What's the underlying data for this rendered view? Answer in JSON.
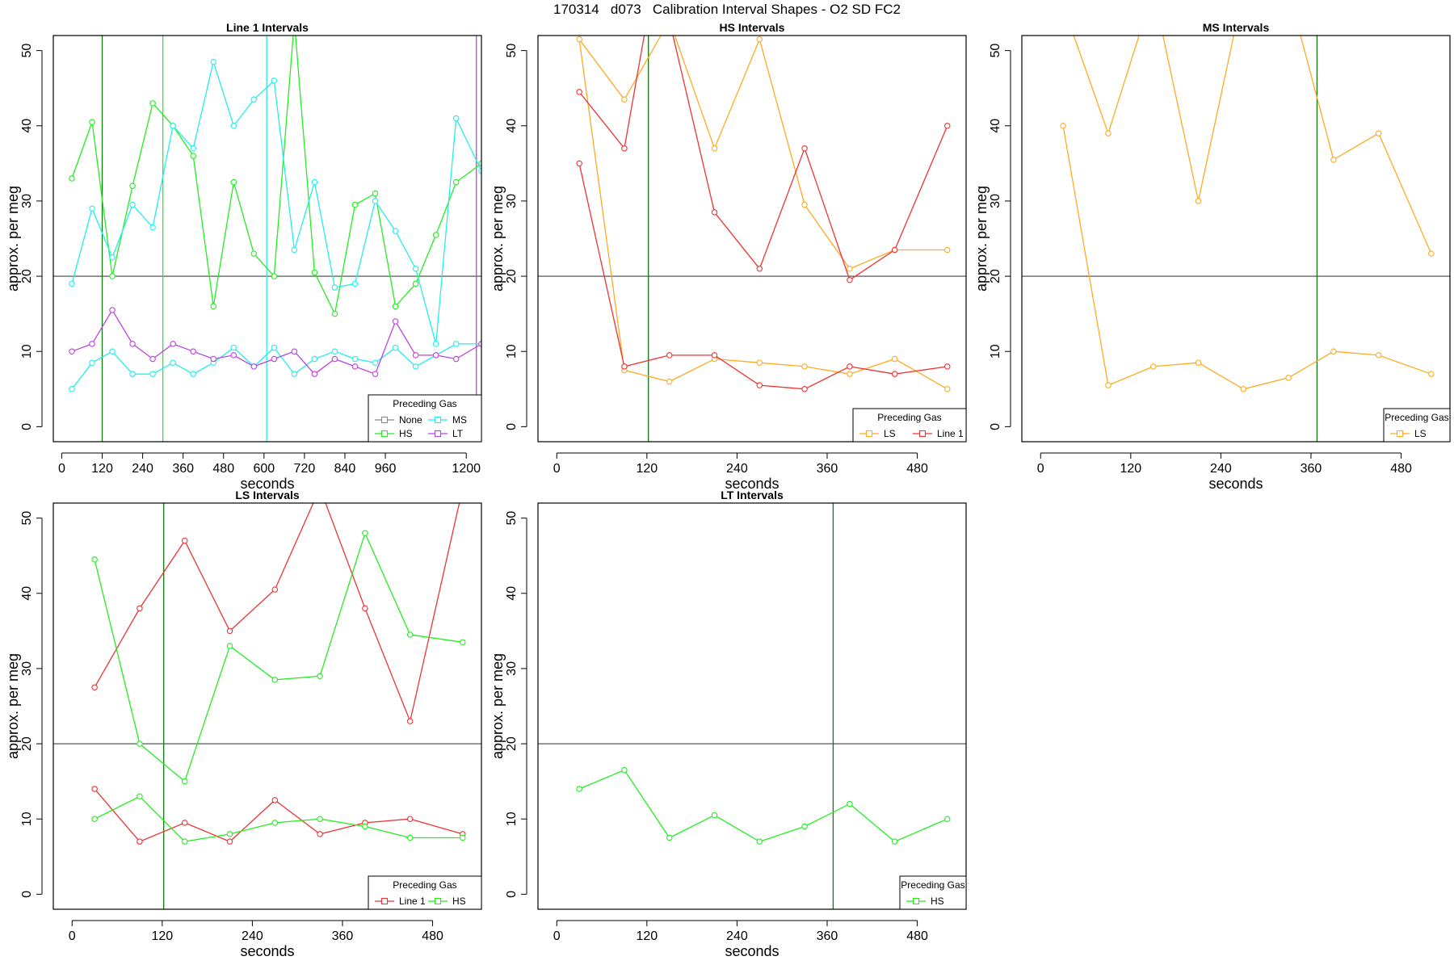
{
  "figure": {
    "title": "170314   d073   Calibration Interval Shapes - O2 SD FC2"
  },
  "colors": {
    "None": "#888888",
    "HS": "#22ee22",
    "MS": "#22eeee",
    "LT": "#bb44dd",
    "LS": "#ffaa22",
    "Line 1": "#ee3333",
    "reference": "#444444",
    "vline_dark": "#117711"
  },
  "chart_data": [
    {
      "type": "line",
      "title": "Line 1 Intervals",
      "xlabel": "seconds",
      "ylabel": "approx. per meg",
      "xlim": [
        -25,
        1245
      ],
      "ylim": [
        -2,
        52
      ],
      "x_ticks": [
        0,
        120,
        240,
        360,
        480,
        600,
        720,
        840,
        960,
        1200
      ],
      "y_ticks": [
        0,
        10,
        20,
        30,
        40,
        50
      ],
      "hline": 20,
      "legend": {
        "title": "Preceding Gas",
        "position": "bottom-right",
        "columns": 2,
        "entries": [
          "None",
          "MS",
          "HS",
          "LT"
        ]
      },
      "vlines": [
        {
          "x": 120,
          "color_key": "vline_dark"
        },
        {
          "x": 300,
          "color_key": "HS"
        },
        {
          "x": 608,
          "color_key": "MS"
        },
        {
          "x": 1230,
          "color_key": "LT"
        }
      ],
      "series": [
        {
          "name": "HS",
          "x": [
            30,
            90,
            150,
            210,
            270,
            330,
            390,
            450,
            510,
            570,
            630,
            690,
            750,
            810,
            870,
            930,
            990,
            1050,
            1110,
            1170,
            1245
          ],
          "y": [
            33,
            40.5,
            20,
            32,
            43,
            40,
            36,
            16,
            32.5,
            23,
            20,
            54,
            20.5,
            15,
            29.5,
            31,
            16,
            19,
            25.5,
            32.5,
            35
          ]
        },
        {
          "name": "MS",
          "x": [
            30,
            90,
            150,
            210,
            270,
            330,
            390,
            450,
            510,
            570,
            630,
            690,
            750,
            810,
            870,
            930,
            990,
            1050,
            1110,
            1170,
            1245
          ],
          "y": [
            19,
            29,
            22.5,
            29.5,
            26.5,
            40,
            37,
            48.5,
            40,
            43.5,
            46,
            23.5,
            32.5,
            18.5,
            19,
            30,
            26,
            21,
            11,
            41,
            34
          ]
        },
        {
          "name": "MS",
          "x": [
            30,
            90,
            150,
            210,
            270,
            330,
            390,
            450,
            510,
            570,
            630,
            690,
            750,
            810,
            870,
            930,
            990,
            1050,
            1110,
            1170,
            1245
          ],
          "y": [
            5,
            8.5,
            10,
            7,
            7,
            8.5,
            7,
            8.5,
            10.5,
            8,
            10.5,
            7,
            9,
            10,
            9,
            8.5,
            10.5,
            8,
            9.5,
            11,
            11
          ]
        },
        {
          "name": "LT",
          "x": [
            30,
            90,
            150,
            210,
            270,
            330,
            390,
            450,
            510,
            570,
            630,
            690,
            750,
            810,
            870,
            930,
            990,
            1050,
            1110,
            1170,
            1245
          ],
          "y": [
            10,
            11,
            15.5,
            11,
            9,
            11,
            10,
            9,
            9.5,
            8,
            9,
            10,
            7,
            9,
            8,
            7,
            14,
            9.5,
            9.5,
            9,
            11
          ]
        }
      ]
    },
    {
      "type": "line",
      "title": "HS Intervals",
      "xlabel": "seconds",
      "ylabel": "approx. per meg",
      "xlim": [
        -25,
        545
      ],
      "ylim": [
        -2,
        52
      ],
      "x_ticks": [
        0,
        120,
        240,
        360,
        480
      ],
      "y_ticks": [
        0,
        10,
        20,
        30,
        40,
        50
      ],
      "hline": 20,
      "legend": {
        "title": "Preceding Gas",
        "position": "bottom-right",
        "columns": 2,
        "entries": [
          "LS",
          "Line 1"
        ]
      },
      "vlines": [
        {
          "x": 122,
          "color_key": "vline_dark"
        }
      ],
      "series": [
        {
          "name": "LS",
          "x": [
            30,
            90,
            150,
            210,
            270,
            330,
            390,
            450,
            520
          ],
          "y": [
            51.5,
            43.5,
            54,
            37,
            51.5,
            29.5,
            21,
            23.5,
            23.5
          ]
        },
        {
          "name": "LS",
          "x": [
            30,
            90,
            150,
            210,
            270,
            330,
            390,
            450,
            520
          ],
          "y": [
            51.5,
            7.5,
            6,
            9,
            8.5,
            8,
            7,
            9,
            5
          ]
        },
        {
          "name": "Line 1",
          "x": [
            30,
            90,
            120,
            150,
            210,
            270,
            330,
            390,
            450,
            520
          ],
          "y": [
            44.5,
            37,
            54,
            54,
            28.5,
            21,
            37,
            19.5,
            23.5,
            40
          ]
        },
        {
          "name": "Line 1",
          "x": [
            30,
            90,
            150,
            210,
            270,
            330,
            390,
            450,
            520
          ],
          "y": [
            35,
            8,
            9.5,
            9.5,
            5.5,
            5,
            8,
            7,
            8
          ]
        }
      ]
    },
    {
      "type": "line",
      "title": "MS Intervals",
      "xlabel": "seconds",
      "ylabel": "approx. per meg",
      "xlim": [
        -25,
        545
      ],
      "ylim": [
        -2,
        52
      ],
      "x_ticks": [
        0,
        120,
        240,
        360,
        480
      ],
      "y_ticks": [
        0,
        10,
        20,
        30,
        40,
        50
      ],
      "hline": 20,
      "legend": {
        "title": "Preceding Gas",
        "position": "bottom-right",
        "columns": 1,
        "entries": [
          "LS"
        ]
      },
      "vlines": [
        {
          "x": 368,
          "color_key": "vline_dark"
        }
      ],
      "series": [
        {
          "name": "LS",
          "x": [
            30,
            90,
            150,
            210,
            270,
            330,
            390,
            450,
            520
          ],
          "y": [
            56,
            39,
            58,
            30,
            58,
            58,
            35.5,
            39,
            23
          ]
        },
        {
          "name": "LS",
          "x": [
            30,
            90,
            150,
            210,
            270,
            330,
            390,
            450,
            520
          ],
          "y": [
            40,
            5.5,
            8,
            8.5,
            5,
            6.5,
            10,
            9.5,
            7
          ]
        }
      ]
    },
    {
      "type": "line",
      "title": "LS Intervals",
      "xlabel": "seconds",
      "ylabel": "approx. per meg",
      "xlim": [
        -25,
        545
      ],
      "ylim": [
        -2,
        52
      ],
      "x_ticks": [
        0,
        120,
        240,
        360,
        480
      ],
      "y_ticks": [
        0,
        10,
        20,
        30,
        40,
        50
      ],
      "hline": 20,
      "legend": {
        "title": "Preceding Gas",
        "position": "bottom-right",
        "columns": 2,
        "entries": [
          "Line 1",
          "HS"
        ]
      },
      "vlines": [
        {
          "x": 122,
          "color_key": "vline_dark"
        }
      ],
      "series": [
        {
          "name": "Line 1",
          "x": [
            30,
            90,
            150,
            210,
            270,
            330,
            390,
            450,
            520
          ],
          "y": [
            27.5,
            38,
            47,
            35,
            40.5,
            54,
            38,
            23,
            54
          ]
        },
        {
          "name": "Line 1",
          "x": [
            30,
            90,
            150,
            210,
            270,
            330,
            390,
            450,
            520
          ],
          "y": [
            14,
            7,
            9.5,
            7,
            12.5,
            8,
            9.5,
            10,
            8
          ]
        },
        {
          "name": "HS",
          "x": [
            30,
            90,
            150,
            210,
            270,
            330,
            390,
            450,
            520
          ],
          "y": [
            44.5,
            20,
            15,
            33,
            28.5,
            29,
            48,
            34.5,
            33.5
          ]
        },
        {
          "name": "HS",
          "x": [
            30,
            90,
            150,
            210,
            270,
            330,
            390,
            450,
            520
          ],
          "y": [
            10,
            13,
            7,
            8,
            9.5,
            10,
            9,
            7.5,
            7.5
          ]
        }
      ]
    },
    {
      "type": "line",
      "title": "LT Intervals",
      "xlabel": "seconds",
      "ylabel": "approx. per meg",
      "xlim": [
        -25,
        545
      ],
      "ylim": [
        -2,
        52
      ],
      "x_ticks": [
        0,
        120,
        240,
        360,
        480
      ],
      "y_ticks": [
        0,
        10,
        20,
        30,
        40,
        50
      ],
      "hline": 20,
      "legend": {
        "title": "Preceding Gas",
        "position": "bottom-right",
        "columns": 1,
        "entries": [
          "HS"
        ]
      },
      "vlines": [
        {
          "x": 368,
          "color_key": "vline_dark"
        }
      ],
      "series": [
        {
          "name": "HS",
          "x": [
            30,
            90,
            150,
            210,
            270,
            330,
            390,
            450,
            520
          ],
          "y": [
            14,
            16.5,
            7.5,
            10.5,
            7,
            9,
            12,
            7,
            10
          ]
        }
      ]
    }
  ]
}
